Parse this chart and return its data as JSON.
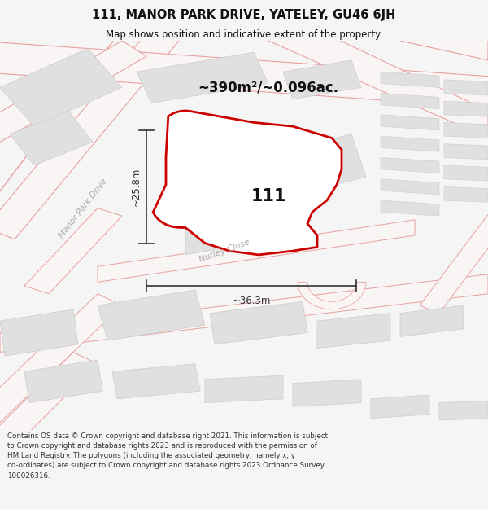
{
  "title": "111, MANOR PARK DRIVE, YATELEY, GU46 6JH",
  "subtitle": "Map shows position and indicative extent of the property.",
  "area_label": "~390m²/~0.096ac.",
  "property_number": "111",
  "dim_vertical": "~25.8m",
  "dim_horizontal": "~36.3m",
  "road_label_1": "Manor Park Drive",
  "road_label_2": "Nutley Close",
  "footer": "Contains OS data © Crown copyright and database right 2021. This information is subject\nto Crown copyright and database rights 2023 and is reproduced with the permission of\nHM Land Registry. The polygons (including the associated geometry, namely x, y\nco-ordinates) are subject to Crown copyright and database rights 2023 Ordnance Survey\n100026316.",
  "bg_color": "#f5f5f5",
  "map_bg": "#ffffff",
  "road_color": "#e8a0a0",
  "road_fill": "#f9f0f0",
  "building_color": "#e0e0e0",
  "building_edge": "#cccccc",
  "property_fill": "#ffffff",
  "property_edge": "#cc0000",
  "dim_color": "#333333",
  "title_color": "#111111",
  "label_color": "#aaaaaa"
}
